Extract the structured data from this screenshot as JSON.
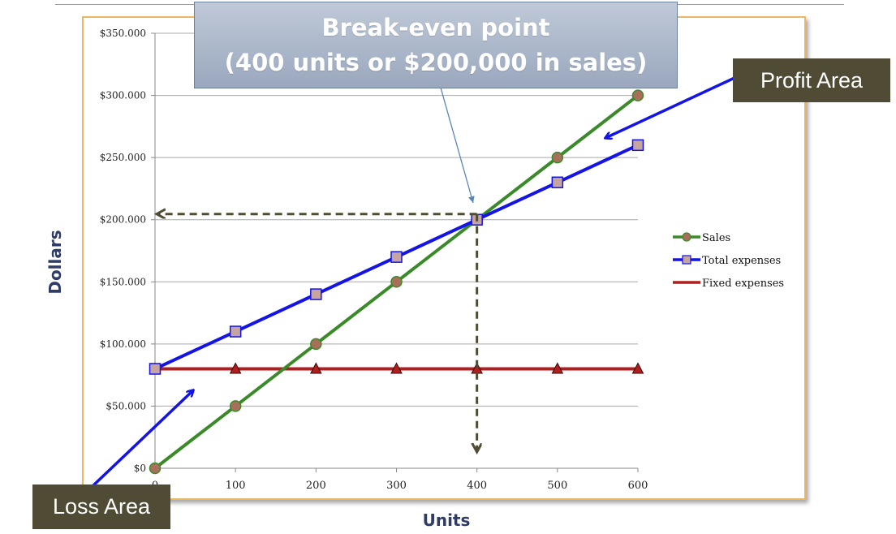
{
  "callout": {
    "line1": "Break-even point",
    "line2": "(400 units or $200,000 in sales)"
  },
  "labels": {
    "profit_area": "Profit Area",
    "loss_area": "Loss Area"
  },
  "chart_data": {
    "type": "line",
    "xlabel": "Units",
    "ylabel": "Dollars",
    "x": [
      0,
      100,
      200,
      300,
      400,
      500,
      600
    ],
    "x_tick_labels": [
      "0",
      "100",
      "200",
      "300",
      "400",
      "500",
      "600"
    ],
    "ylim": [
      0,
      350000
    ],
    "y_ticks": [
      0,
      50000,
      100000,
      150000,
      200000,
      250000,
      300000,
      350000
    ],
    "y_tick_labels": [
      "$0",
      "$50.000",
      "$100.000",
      "$150.000",
      "$200.000",
      "$250.000",
      "$300.000",
      "$350.000"
    ],
    "grid": true,
    "legend_position": "right",
    "series": [
      {
        "name": "Sales",
        "values": [
          0,
          50000,
          100000,
          150000,
          200000,
          250000,
          300000
        ],
        "color": "#3b8a2a",
        "marker": "circle"
      },
      {
        "name": "Total expenses",
        "values": [
          80000,
          110000,
          140000,
          170000,
          200000,
          230000,
          260000
        ],
        "color": "#1414e6",
        "marker": "square"
      },
      {
        "name": "Fixed expenses",
        "values": [
          80000,
          80000,
          80000,
          80000,
          80000,
          80000,
          80000
        ],
        "color": "#b01e1e",
        "marker": "triangle"
      }
    ],
    "break_even": {
      "x": 400,
      "y": 200000
    }
  },
  "colors": {
    "frame_border": "#e8b868",
    "callout_fill": "#aab5c8",
    "label_fill": "#4f4b35",
    "annotation_arrow": "#1414e6",
    "guide_arrow": "#4f4b35"
  }
}
